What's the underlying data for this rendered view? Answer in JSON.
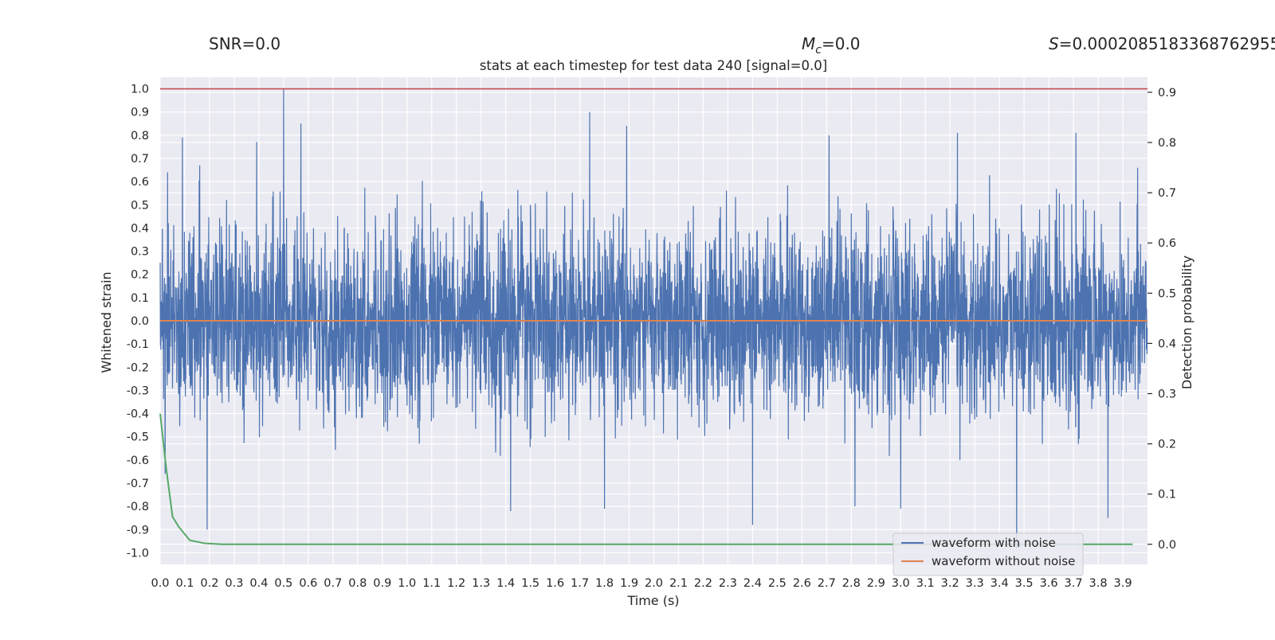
{
  "chart_data": {
    "type": "line",
    "header": {
      "snr": "SNR=0.0",
      "mc_symbol": "M",
      "mc_sub": "c",
      "mc_value": "=0.0",
      "s_symbol": "S",
      "s_value": "=0.00020851833687629552"
    },
    "title": "stats at each timestep for test data 240 [signal=0.0]",
    "xlabel": "Time (s)",
    "ylabel": "Whitened strain",
    "y2label": "Detection probability",
    "xlim": [
      0.0,
      4.0
    ],
    "ylim": [
      -1.05,
      1.05
    ],
    "y2lim": [
      -0.04,
      0.93
    ],
    "xticks": [
      "0.0",
      "0.1",
      "0.2",
      "0.3",
      "0.4",
      "0.5",
      "0.6",
      "0.7",
      "0.8",
      "0.9",
      "1.0",
      "1.1",
      "1.2",
      "1.3",
      "1.4",
      "1.5",
      "1.6",
      "1.7",
      "1.8",
      "1.9",
      "2.0",
      "2.1",
      "2.2",
      "2.3",
      "2.4",
      "2.5",
      "2.6",
      "2.7",
      "2.8",
      "2.9",
      "3.0",
      "3.1",
      "3.2",
      "3.3",
      "3.4",
      "3.5",
      "3.6",
      "3.7",
      "3.8",
      "3.9"
    ],
    "yticks": [
      "1.0",
      "0.9",
      "0.8",
      "0.7",
      "0.6",
      "0.5",
      "0.4",
      "0.3",
      "0.2",
      "0.1",
      "0.0",
      "-0.1",
      "-0.2",
      "-0.3",
      "-0.4",
      "-0.5",
      "-0.6",
      "-0.7",
      "-0.8",
      "-0.9",
      "-1.0"
    ],
    "y2ticks": [
      "0.9",
      "0.8",
      "0.7",
      "0.6",
      "0.5",
      "0.4",
      "0.3",
      "0.2",
      "0.1",
      "0.0"
    ],
    "series": [
      {
        "name": "waveform with noise",
        "color": "#4c72b0",
        "axis": "left",
        "peaks": [
          {
            "x": 0.0,
            "y": 0.25
          },
          {
            "x": 0.03,
            "y": 0.64
          },
          {
            "x": 0.09,
            "y": 0.79
          },
          {
            "x": 0.16,
            "y": 0.67
          },
          {
            "x": 0.5,
            "y": 1.0
          },
          {
            "x": 0.57,
            "y": 0.85
          },
          {
            "x": 1.74,
            "y": 0.9
          },
          {
            "x": 1.89,
            "y": 0.84
          },
          {
            "x": 2.71,
            "y": 0.8
          },
          {
            "x": 3.0,
            "y": 0.93
          },
          {
            "x": 3.23,
            "y": 0.81
          },
          {
            "x": 3.71,
            "y": 0.81
          },
          {
            "x": 3.96,
            "y": 0.66
          }
        ],
        "troughs": [
          {
            "x": 0.02,
            "y": -0.66
          },
          {
            "x": 0.19,
            "y": -0.9
          },
          {
            "x": 1.42,
            "y": -0.82
          },
          {
            "x": 1.8,
            "y": -0.81
          },
          {
            "x": 2.4,
            "y": -0.88
          },
          {
            "x": 3.0,
            "y": -0.81
          },
          {
            "x": 3.47,
            "y": -0.98
          },
          {
            "x": 3.84,
            "y": -0.85
          }
        ]
      },
      {
        "name": "waveform without noise",
        "color": "#dd8452",
        "axis": "left",
        "x": [
          0.0,
          4.0
        ],
        "y": [
          0.0,
          0.0
        ]
      },
      {
        "name": "detection probability",
        "color": "#55a868",
        "axis": "right",
        "x": [
          0.0,
          0.025,
          0.05,
          0.075,
          0.12,
          0.18,
          0.25,
          0.35,
          0.5,
          1.0,
          2.0,
          3.0,
          3.94
        ],
        "y": [
          0.26,
          0.15,
          0.055,
          0.035,
          0.008,
          0.002,
          0.0,
          0.0,
          0.0,
          0.0,
          0.0,
          0.0,
          0.0
        ]
      },
      {
        "name": "threshold",
        "color": "#c44e52",
        "axis": "left",
        "x": [
          0.0,
          4.0
        ],
        "y": [
          1.0,
          1.0
        ]
      }
    ],
    "legend": {
      "position": "lower right",
      "entries": [
        {
          "label": "waveform with noise",
          "color": "#4c72b0"
        },
        {
          "label": "waveform without noise",
          "color": "#dd8452"
        }
      ]
    },
    "grid": true
  }
}
